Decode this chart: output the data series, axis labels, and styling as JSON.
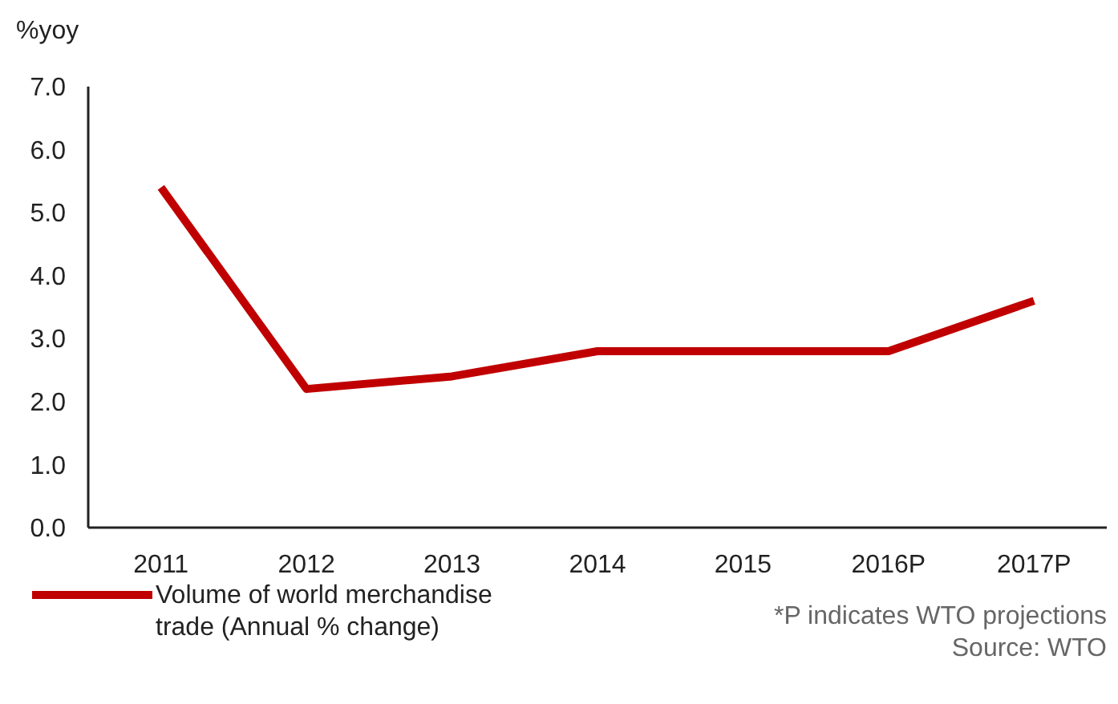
{
  "chart_data": {
    "type": "line",
    "ylabel": "%yoy",
    "categories": [
      "2011",
      "2012",
      "2013",
      "2014",
      "2015",
      "2016P",
      "2017P"
    ],
    "series": [
      {
        "name": "Volume of world merchandise trade (Annual % change)",
        "color": "#c00000",
        "values": [
          5.4,
          2.2,
          2.4,
          2.8,
          2.8,
          2.8,
          3.6
        ]
      }
    ],
    "ylim": [
      0,
      7
    ],
    "yticks": [
      {
        "value": 0,
        "label": "0.0"
      },
      {
        "value": 1,
        "label": "1.0"
      },
      {
        "value": 2,
        "label": "2.0"
      },
      {
        "value": 3,
        "label": "3.0"
      },
      {
        "value": 4,
        "label": "4.0"
      },
      {
        "value": 5,
        "label": "5.0"
      },
      {
        "value": 6,
        "label": "6.0"
      },
      {
        "value": 7,
        "label": "7.0"
      }
    ],
    "grid": false,
    "legend": "bottom left",
    "marker": "none",
    "line_style": "solid",
    "annotations": [
      "*P indicates  WTO projections",
      "Source:  WTO"
    ]
  }
}
